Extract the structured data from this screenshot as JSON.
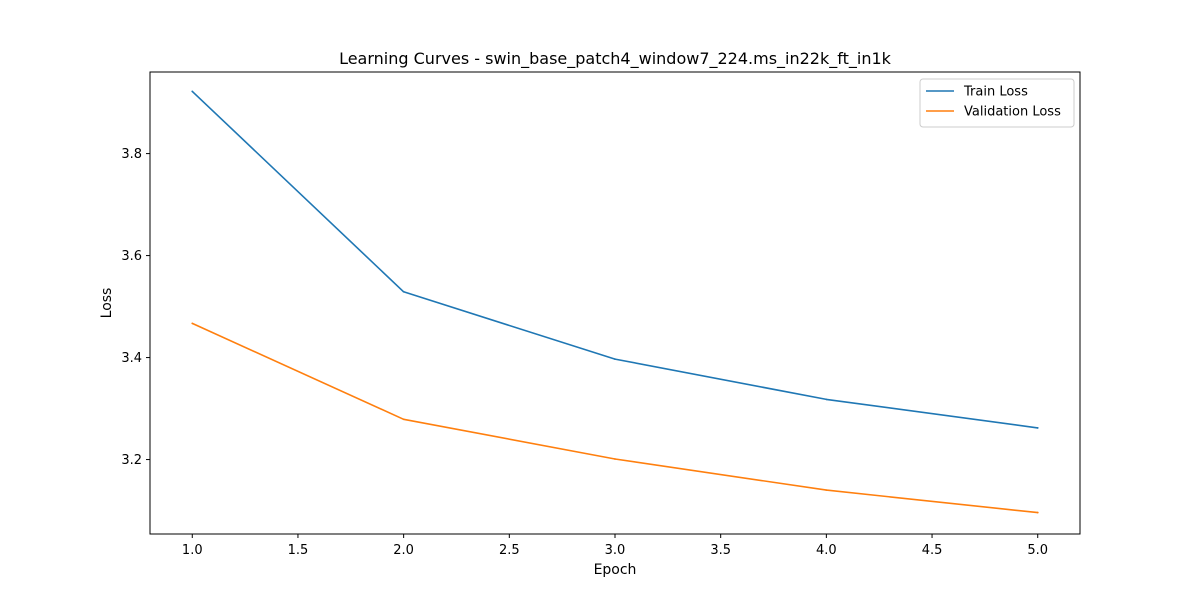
{
  "chart_data": {
    "type": "line",
    "title": "Learning Curves - swin_base_patch4_window7_224.ms_in22k_ft_in1k",
    "xlabel": "Epoch",
    "ylabel": "Loss",
    "x": [
      1,
      2,
      3,
      4,
      5
    ],
    "xlim": [
      0.8,
      5.2
    ],
    "ylim": [
      3.054,
      3.96
    ],
    "xticks": [
      "1.0",
      "1.5",
      "2.0",
      "2.5",
      "3.0",
      "3.5",
      "4.0",
      "4.5",
      "5.0"
    ],
    "yticks": [
      "3.2",
      "3.4",
      "3.6",
      "3.8"
    ],
    "grid": false,
    "legend_position": "top-right",
    "series": [
      {
        "name": "Train Loss",
        "color": "#1f77b4",
        "values": [
          3.922,
          3.529,
          3.397,
          3.318,
          3.262
        ]
      },
      {
        "name": "Validation Loss",
        "color": "#ff7f0e",
        "values": [
          3.467,
          3.279,
          3.201,
          3.14,
          3.096
        ]
      }
    ]
  }
}
